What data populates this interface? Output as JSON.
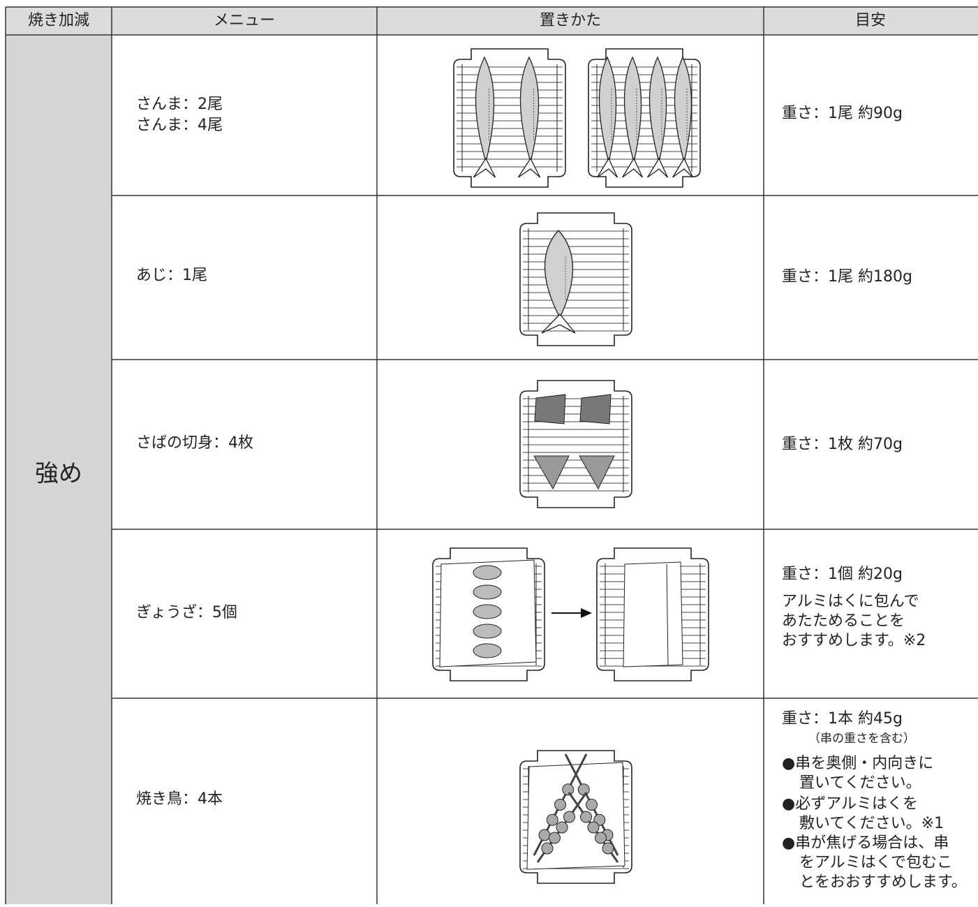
{
  "table": {
    "header": [
      "焼き加減",
      "メニュー",
      "置きかた",
      "目安"
    ],
    "level": "強め",
    "rows": [
      {
        "menu": [
          "さんま：2尾",
          "さんま：4尾"
        ],
        "guide": [
          "重さ：1尾 約90g"
        ]
      },
      {
        "menu": [
          "あじ：1尾"
        ],
        "guide": [
          "重さ：1尾 約180g"
        ]
      },
      {
        "menu": [
          "さばの切身：4枚"
        ],
        "guide": [
          "重さ：1枚 約70g"
        ]
      },
      {
        "menu": [
          "ぎょうざ：5個"
        ],
        "guide": [
          "重さ：1個 約20g",
          "アルミはくに包んで",
          "あたためることを",
          "おすすめします。※2"
        ]
      },
      {
        "menu": [
          "焼き鳥：4本"
        ],
        "guide": [
          "重さ：1本 約45g",
          "（串の重さを含む）",
          "●串を奥側・内向きに",
          "置いてください。",
          "●必ずアルミはくを",
          "敷いてください。※1",
          "●串が焦げる場合は、串",
          "をアルミはくで包むこ",
          "とをおおすすめします。"
        ]
      }
    ]
  }
}
